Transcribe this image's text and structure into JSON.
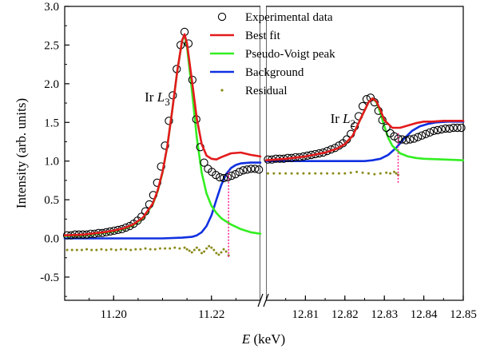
{
  "chart_data": {
    "type": "line",
    "ylabel": "Intensity (arb. units)",
    "xlabel_symbol": "E",
    "xlabel_unit": " (keV)",
    "ylim": [
      -0.8,
      3.0
    ],
    "y_ticks": [
      "3.0",
      "2.5",
      "2.0",
      "1.5",
      "1.0",
      "0.5",
      "0.0",
      "-0.5"
    ],
    "y_tick_values": [
      3.0,
      2.5,
      2.0,
      1.5,
      1.0,
      0.5,
      0.0,
      -0.5
    ],
    "panels": [
      {
        "xlim": [
          11.19,
          11.23
        ],
        "x_ticks": [
          "11.20",
          "11.22"
        ],
        "x_tick_values": [
          11.2,
          11.22
        ]
      },
      {
        "xlim": [
          12.8,
          12.85
        ],
        "x_ticks": [
          "12.81",
          "12.82",
          "12.83",
          "12.84",
          "12.85"
        ],
        "x_tick_values": [
          12.81,
          12.82,
          12.83,
          12.84,
          12.85
        ]
      }
    ],
    "annotations": [
      {
        "prefix": "Ir ",
        "symbol": "L",
        "sub": "3",
        "panel": 0,
        "x": 11.2115,
        "y": 1.77
      },
      {
        "prefix": "Ir ",
        "symbol": "L",
        "sub": "2",
        "panel": 1,
        "x": 12.8227,
        "y": 1.49
      }
    ],
    "edge_markers": [
      {
        "panel": 0,
        "x": 11.2235,
        "y_from": -0.24,
        "y_to": 0.88
      },
      {
        "panel": 1,
        "x": 12.8335,
        "y_from": 0.72,
        "y_to": 1.38
      }
    ],
    "legend": {
      "placement": "top-right",
      "entries": [
        {
          "label": "Experimental data",
          "kind": "circle",
          "color": "#000000"
        },
        {
          "label": "Best fit",
          "kind": "line",
          "color": "#e31a1c"
        },
        {
          "label": "Pseudo-Voigt peak",
          "kind": "line",
          "color": "#33ee22"
        },
        {
          "label": "Background",
          "kind": "line",
          "color": "#1030e0"
        },
        {
          "label": "Residual",
          "kind": "dot",
          "color": "#8a8a1a"
        }
      ]
    },
    "series": [
      {
        "name": "Experimental data",
        "style": "circle",
        "color": "#000000",
        "panels": [
          {
            "x": [
              11.1905,
              11.1913,
              11.1921,
              11.1929,
              11.1937,
              11.1945,
              11.1953,
              11.1961,
              11.1969,
              11.1977,
              11.1985,
              11.1993,
              11.2001,
              11.2009,
              11.2017,
              11.2025,
              11.2033,
              11.2041,
              11.2049,
              11.2057,
              11.2065,
              11.2073,
              11.2081,
              11.2089,
              11.2097,
              11.2105,
              11.2113,
              11.2121,
              11.2129,
              11.2137,
              11.2145,
              11.2153,
              11.2161,
              11.2169,
              11.2177,
              11.2185,
              11.2193,
              11.2201,
              11.2209,
              11.2217,
              11.2225,
              11.2233,
              11.2241,
              11.2249,
              11.2257,
              11.2265,
              11.2273,
              11.2281,
              11.2289,
              11.2297
            ],
            "y": [
              0.04,
              0.04,
              0.05,
              0.05,
              0.05,
              0.05,
              0.06,
              0.06,
              0.07,
              0.07,
              0.08,
              0.09,
              0.1,
              0.11,
              0.12,
              0.14,
              0.16,
              0.19,
              0.23,
              0.28,
              0.35,
              0.44,
              0.56,
              0.72,
              0.93,
              1.2,
              1.52,
              1.85,
              2.19,
              2.5,
              2.67,
              2.52,
              2.05,
              1.54,
              1.18,
              0.98,
              0.9,
              0.86,
              0.82,
              0.79,
              0.78,
              0.79,
              0.81,
              0.83,
              0.86,
              0.88,
              0.89,
              0.9,
              0.9,
              0.89
            ]
          },
          {
            "x": [
              12.8005,
              12.8015,
              12.8025,
              12.8035,
              12.8045,
              12.8055,
              12.8065,
              12.8075,
              12.8085,
              12.8095,
              12.8105,
              12.8115,
              12.8125,
              12.8135,
              12.8145,
              12.8155,
              12.8165,
              12.8175,
              12.8185,
              12.8195,
              12.8205,
              12.8215,
              12.8225,
              12.8235,
              12.8245,
              12.8255,
              12.8265,
              12.8275,
              12.8285,
              12.8295,
              12.8305,
              12.8315,
              12.8325,
              12.8335,
              12.8345,
              12.8355,
              12.8365,
              12.8375,
              12.8385,
              12.8395,
              12.8405,
              12.8415,
              12.8425,
              12.8435,
              12.8445,
              12.8455,
              12.8465,
              12.8475,
              12.8485,
              12.8495
            ],
            "y": [
              1.02,
              1.02,
              1.03,
              1.03,
              1.03,
              1.04,
              1.04,
              1.05,
              1.05,
              1.06,
              1.07,
              1.08,
              1.09,
              1.1,
              1.11,
              1.13,
              1.15,
              1.17,
              1.2,
              1.23,
              1.28,
              1.35,
              1.45,
              1.58,
              1.71,
              1.8,
              1.82,
              1.76,
              1.65,
              1.53,
              1.43,
              1.36,
              1.32,
              1.29,
              1.28,
              1.27,
              1.28,
              1.29,
              1.31,
              1.33,
              1.35,
              1.37,
              1.39,
              1.4,
              1.41,
              1.42,
              1.42,
              1.43,
              1.43,
              1.43
            ]
          }
        ]
      },
      {
        "name": "Best fit",
        "style": "line",
        "color": "#e31a1c",
        "panels": [
          {
            "x": [
              11.19,
              11.194,
              11.198,
              11.2,
              11.202,
              11.204,
              11.206,
              11.208,
              11.209,
              11.21,
              11.211,
              11.212,
              11.213,
              11.214,
              11.2145,
              11.215,
              11.216,
              11.217,
              11.218,
              11.219,
              11.22,
              11.221,
              11.222,
              11.224,
              11.226,
              11.228,
              11.23
            ],
            "y": [
              0.04,
              0.05,
              0.08,
              0.1,
              0.13,
              0.18,
              0.27,
              0.45,
              0.62,
              0.86,
              1.2,
              1.66,
              2.16,
              2.56,
              2.64,
              2.52,
              2.05,
              1.55,
              1.22,
              1.07,
              1.03,
              1.02,
              1.05,
              1.1,
              1.11,
              1.08,
              1.06
            ]
          },
          {
            "x": [
              12.8,
              12.805,
              12.81,
              12.815,
              12.818,
              12.82,
              12.822,
              12.824,
              12.826,
              12.827,
              12.828,
              12.829,
              12.83,
              12.832,
              12.834,
              12.836,
              12.838,
              12.84,
              12.842,
              12.845,
              12.85
            ],
            "y": [
              1.01,
              1.03,
              1.06,
              1.11,
              1.16,
              1.22,
              1.33,
              1.55,
              1.76,
              1.81,
              1.77,
              1.66,
              1.53,
              1.43,
              1.43,
              1.46,
              1.49,
              1.51,
              1.51,
              1.52,
              1.52
            ]
          }
        ]
      },
      {
        "name": "Pseudo-Voigt peak",
        "style": "line",
        "color": "#33ee22",
        "panels": [
          {
            "x": [
              11.19,
              11.194,
              11.198,
              11.2,
              11.202,
              11.204,
              11.206,
              11.208,
              11.209,
              11.21,
              11.211,
              11.212,
              11.213,
              11.214,
              11.2145,
              11.215,
              11.216,
              11.217,
              11.218,
              11.219,
              11.22,
              11.221,
              11.222,
              11.224,
              11.226,
              11.228,
              11.23
            ],
            "y": [
              0.03,
              0.04,
              0.07,
              0.09,
              0.12,
              0.17,
              0.26,
              0.44,
              0.61,
              0.85,
              1.2,
              1.66,
              2.16,
              2.55,
              2.63,
              2.48,
              1.92,
              1.3,
              0.85,
              0.58,
              0.42,
              0.33,
              0.26,
              0.18,
              0.12,
              0.08,
              0.06
            ]
          },
          {
            "x": [
              12.82,
              12.822,
              12.824,
              12.826,
              12.827,
              12.828,
              12.829,
              12.83,
              12.831,
              12.832,
              12.834,
              12.836,
              12.838,
              12.84,
              12.845,
              12.85
            ],
            "y": [
              1.22,
              1.33,
              1.55,
              1.76,
              1.81,
              1.76,
              1.62,
              1.45,
              1.3,
              1.2,
              1.1,
              1.06,
              1.04,
              1.03,
              1.02,
              1.01
            ]
          }
        ]
      },
      {
        "name": "Background",
        "style": "line",
        "color": "#1030e0",
        "panels": [
          {
            "x": [
              11.19,
              11.2,
              11.21,
              11.214,
              11.216,
              11.217,
              11.218,
              11.219,
              11.22,
              11.221,
              11.222,
              11.223,
              11.224,
              11.225,
              11.226,
              11.228,
              11.23
            ],
            "y": [
              0.0,
              0.0,
              0.0,
              0.01,
              0.02,
              0.04,
              0.08,
              0.16,
              0.3,
              0.5,
              0.69,
              0.83,
              0.91,
              0.95,
              0.97,
              0.98,
              0.98
            ]
          },
          {
            "x": [
              12.8,
              12.81,
              12.82,
              12.825,
              12.827,
              12.829,
              12.831,
              12.833,
              12.835,
              12.837,
              12.839,
              12.841,
              12.843,
              12.846,
              12.85
            ],
            "y": [
              1.0,
              1.0,
              1.0,
              1.0,
              1.01,
              1.03,
              1.08,
              1.17,
              1.29,
              1.39,
              1.45,
              1.48,
              1.5,
              1.51,
              1.51
            ]
          }
        ]
      },
      {
        "name": "Residual",
        "style": "dot",
        "color": "#8a8a1a",
        "panels": [
          {
            "x": [
              11.1905,
              11.1915,
              11.1925,
              11.1935,
              11.1945,
              11.1955,
              11.1965,
              11.1975,
              11.1985,
              11.1995,
              11.2005,
              11.2015,
              11.2025,
              11.2035,
              11.2045,
              11.2055,
              11.2065,
              11.2075,
              11.2085,
              11.2095,
              11.2105,
              11.2115,
              11.2125,
              11.2135,
              11.2145,
              11.215,
              11.2155,
              11.216,
              11.2165,
              11.217,
              11.2175,
              11.218,
              11.2185,
              11.219,
              11.2195,
              11.22,
              11.2205,
              11.221,
              11.2215,
              11.222,
              11.2225,
              11.223,
              11.2235
            ],
            "y": [
              -0.15,
              -0.15,
              -0.15,
              -0.15,
              -0.14,
              -0.15,
              -0.15,
              -0.14,
              -0.15,
              -0.14,
              -0.15,
              -0.14,
              -0.14,
              -0.15,
              -0.14,
              -0.14,
              -0.13,
              -0.14,
              -0.14,
              -0.13,
              -0.13,
              -0.13,
              -0.12,
              -0.13,
              -0.12,
              -0.14,
              -0.16,
              -0.18,
              -0.15,
              -0.12,
              -0.15,
              -0.19,
              -0.17,
              -0.13,
              -0.1,
              -0.12,
              -0.15,
              -0.19,
              -0.21,
              -0.18,
              -0.14,
              -0.17,
              -0.22
            ]
          },
          {
            "x": [
              12.8005,
              12.802,
              12.8035,
              12.805,
              12.8065,
              12.808,
              12.8095,
              12.811,
              12.8125,
              12.814,
              12.8155,
              12.817,
              12.8185,
              12.82,
              12.8215,
              12.823,
              12.8245,
              12.826,
              12.8275,
              12.829,
              12.8305,
              12.8315,
              12.8325,
              12.833,
              12.8335
            ],
            "y": [
              0.84,
              0.84,
              0.84,
              0.84,
              0.84,
              0.84,
              0.84,
              0.84,
              0.84,
              0.84,
              0.84,
              0.84,
              0.84,
              0.84,
              0.85,
              0.86,
              0.85,
              0.84,
              0.83,
              0.84,
              0.85,
              0.84,
              0.86,
              0.84,
              0.82
            ]
          }
        ]
      }
    ]
  }
}
